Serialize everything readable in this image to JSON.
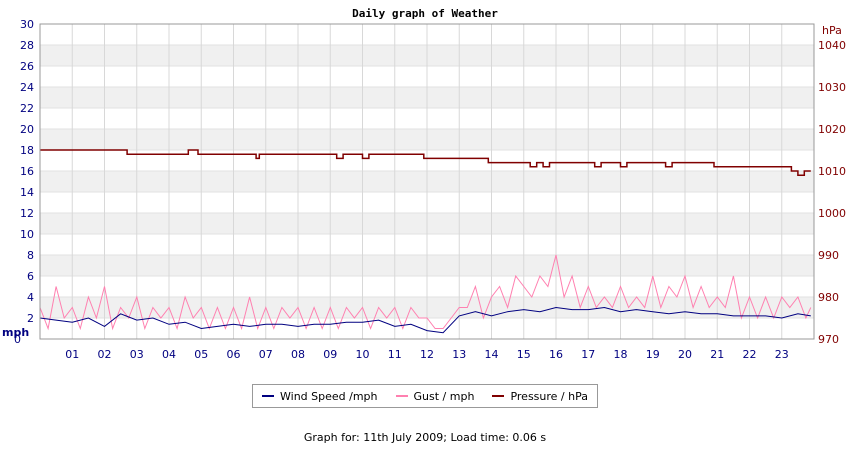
{
  "chart_data": {
    "type": "line",
    "title": "Daily graph of Weather",
    "left_axis": {
      "unit_label": "mph",
      "ylim": [
        0,
        30
      ],
      "ticks": [
        0,
        2,
        4,
        6,
        8,
        10,
        12,
        14,
        16,
        18,
        20,
        22,
        24,
        26,
        28,
        30
      ]
    },
    "right_axis": {
      "unit_label": "hPa",
      "ylim": [
        970,
        1045
      ],
      "ticks": [
        970,
        980,
        990,
        1000,
        1010,
        1020,
        1030,
        1040
      ]
    },
    "x_tick_labels": [
      "01",
      "02",
      "03",
      "04",
      "05",
      "06",
      "07",
      "08",
      "09",
      "10",
      "11",
      "12",
      "13",
      "14",
      "15",
      "16",
      "17",
      "18",
      "19",
      "20",
      "21",
      "22",
      "23"
    ],
    "xlim": [
      0,
      24
    ],
    "series": [
      {
        "name": "Wind Speed /mph",
        "axis": "left",
        "color": "#000080",
        "x": [
          0,
          0.5,
          1,
          1.5,
          2,
          2.5,
          3,
          3.5,
          4,
          4.5,
          5,
          5.5,
          6,
          6.5,
          7,
          7.5,
          8,
          8.5,
          9,
          9.5,
          10,
          10.5,
          11,
          11.5,
          12,
          12.5,
          13,
          13.5,
          14,
          14.5,
          15,
          15.5,
          16,
          16.5,
          17,
          17.5,
          18,
          18.5,
          19,
          19.5,
          20,
          20.5,
          21,
          21.5,
          22,
          22.5,
          23,
          23.5,
          23.9
        ],
        "y": [
          2.0,
          1.8,
          1.6,
          2.0,
          1.2,
          2.4,
          1.8,
          2.0,
          1.4,
          1.6,
          1.0,
          1.2,
          1.4,
          1.2,
          1.4,
          1.4,
          1.2,
          1.4,
          1.4,
          1.6,
          1.6,
          1.8,
          1.2,
          1.4,
          0.8,
          0.6,
          2.2,
          2.6,
          2.2,
          2.6,
          2.8,
          2.6,
          3.0,
          2.8,
          2.8,
          3.0,
          2.6,
          2.8,
          2.6,
          2.4,
          2.6,
          2.4,
          2.4,
          2.2,
          2.2,
          2.2,
          2.0,
          2.4,
          2.2
        ]
      },
      {
        "name": "Gust / mph",
        "axis": "left",
        "color": "#ff80b0",
        "x": [
          0,
          0.25,
          0.5,
          0.75,
          1,
          1.25,
          1.5,
          1.75,
          2,
          2.25,
          2.5,
          2.75,
          3,
          3.25,
          3.5,
          3.75,
          4,
          4.25,
          4.5,
          4.75,
          5,
          5.25,
          5.5,
          5.75,
          6,
          6.25,
          6.5,
          6.75,
          7,
          7.25,
          7.5,
          7.75,
          8,
          8.25,
          8.5,
          8.75,
          9,
          9.25,
          9.5,
          9.75,
          10,
          10.25,
          10.5,
          10.75,
          11,
          11.25,
          11.5,
          11.75,
          12,
          12.25,
          12.5,
          12.75,
          13,
          13.25,
          13.5,
          13.75,
          14,
          14.25,
          14.5,
          14.75,
          15,
          15.25,
          15.5,
          15.75,
          16,
          16.25,
          16.5,
          16.75,
          17,
          17.25,
          17.5,
          17.75,
          18,
          18.25,
          18.5,
          18.75,
          19,
          19.25,
          19.5,
          19.75,
          20,
          20.25,
          20.5,
          20.75,
          21,
          21.25,
          21.5,
          21.75,
          22,
          22.25,
          22.5,
          22.75,
          23,
          23.25,
          23.5,
          23.75,
          23.9
        ],
        "y": [
          3,
          1,
          5,
          2,
          3,
          1,
          4,
          2,
          5,
          1,
          3,
          2,
          4,
          1,
          3,
          2,
          3,
          1,
          4,
          2,
          3,
          1,
          3,
          1,
          3,
          1,
          4,
          1,
          3,
          1,
          3,
          2,
          3,
          1,
          3,
          1,
          3,
          1,
          3,
          2,
          3,
          1,
          3,
          2,
          3,
          1,
          3,
          2,
          2,
          1,
          1,
          2,
          3,
          3,
          5,
          2,
          4,
          5,
          3,
          6,
          5,
          4,
          6,
          5,
          8,
          4,
          6,
          3,
          5,
          3,
          4,
          3,
          5,
          3,
          4,
          3,
          6,
          3,
          5,
          4,
          6,
          3,
          5,
          3,
          4,
          3,
          6,
          2,
          4,
          2,
          4,
          2,
          4,
          3,
          4,
          2,
          3
        ]
      },
      {
        "name": "Pressure / hPa",
        "axis": "right",
        "color": "#800000",
        "x": [
          0,
          2.6,
          2.7,
          4.5,
          4.6,
          4.8,
          4.9,
          6.6,
          6.7,
          6.8,
          9.0,
          9.2,
          9.4,
          9.8,
          10.0,
          10.2,
          10.5,
          11.8,
          11.9,
          12.0,
          13.8,
          13.9,
          14.0,
          15.0,
          15.2,
          15.4,
          15.6,
          15.8,
          16.0,
          16.2,
          17.0,
          17.2,
          17.4,
          17.8,
          18.0,
          18.2,
          18.4,
          19.2,
          19.4,
          19.6,
          20.8,
          20.9,
          21.0,
          23.0,
          23.3,
          23.5,
          23.7,
          23.9
        ],
        "y": [
          1015,
          1015,
          1014,
          1014,
          1015,
          1015,
          1014,
          1014,
          1013,
          1014,
          1014,
          1013,
          1014,
          1014,
          1013,
          1014,
          1014,
          1014,
          1013,
          1013,
          1013,
          1012,
          1012,
          1012,
          1011,
          1012,
          1011,
          1012,
          1012,
          1012,
          1012,
          1011,
          1012,
          1012,
          1011,
          1012,
          1012,
          1012,
          1011,
          1012,
          1012,
          1011,
          1011,
          1011,
          1010,
          1009,
          1010,
          1010
        ]
      }
    ]
  },
  "footer": {
    "text": "Graph for: 11th July 2009; Load time: 0.06 s"
  },
  "colors": {
    "left_axis": "#000080",
    "right_axis": "#800000",
    "band": "#f0f0f0",
    "grid": "#d8d8d8"
  }
}
